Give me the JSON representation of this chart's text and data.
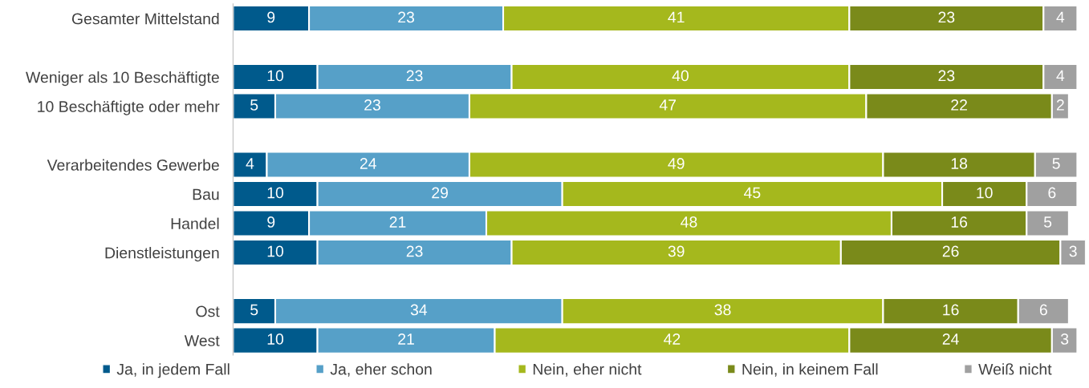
{
  "chart_data": {
    "type": "bar",
    "orientation": "horizontal",
    "stacked": true,
    "data_labels": true,
    "legend": "bottom",
    "grid": false,
    "tick_labels": "y",
    "categories": [
      "Gesamter Mittelstand",
      null,
      "Weniger als 10 Beschäftigte",
      "10 Beschäftigte oder mehr",
      null,
      "Verarbeitendes Gewerbe",
      "Bau",
      "Handel",
      "Dienstleistungen",
      null,
      "Ost",
      "West"
    ],
    "series": [
      {
        "name": "Ja, in jedem Fall",
        "color": "#005a8c",
        "values": [
          9,
          null,
          10,
          5,
          null,
          4,
          10,
          9,
          10,
          null,
          5,
          10
        ]
      },
      {
        "name": "Ja, eher schon",
        "color": "#56a0c8",
        "values": [
          23,
          null,
          23,
          23,
          null,
          24,
          29,
          21,
          23,
          null,
          34,
          21
        ]
      },
      {
        "name": "Nein, eher nicht",
        "color": "#a5b81d",
        "values": [
          41,
          null,
          40,
          47,
          null,
          49,
          45,
          48,
          39,
          null,
          38,
          42
        ]
      },
      {
        "name": "Nein, in keinem Fall",
        "color": "#7a8a1a",
        "values": [
          23,
          null,
          23,
          22,
          null,
          18,
          10,
          16,
          26,
          null,
          16,
          24
        ]
      },
      {
        "name": "Weiß nicht",
        "color": "#a0a0a0",
        "values": [
          4,
          null,
          4,
          2,
          null,
          5,
          6,
          5,
          3,
          null,
          6,
          3
        ]
      }
    ]
  }
}
